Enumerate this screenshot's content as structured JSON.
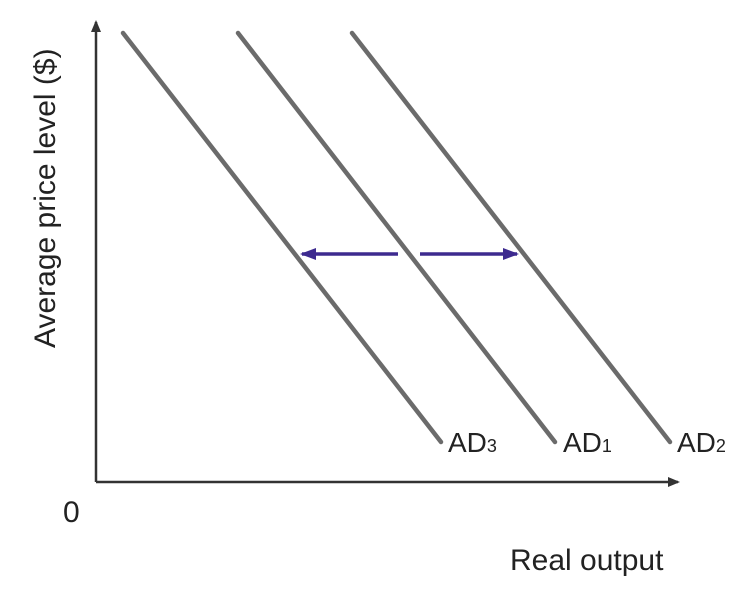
{
  "diagram": {
    "y_axis_label": "Average price level ($)",
    "x_axis_label": "Real output",
    "origin_label": "0",
    "curves": [
      {
        "id": "ad3",
        "label_main": "AD",
        "label_sub": "3"
      },
      {
        "id": "ad1",
        "label_main": "AD",
        "label_sub": "1"
      },
      {
        "id": "ad2",
        "label_main": "AD",
        "label_sub": "2"
      }
    ],
    "colors": {
      "axis": "#333333",
      "curve": "#6b6b6b",
      "arrow": "#3d2a8f"
    }
  }
}
